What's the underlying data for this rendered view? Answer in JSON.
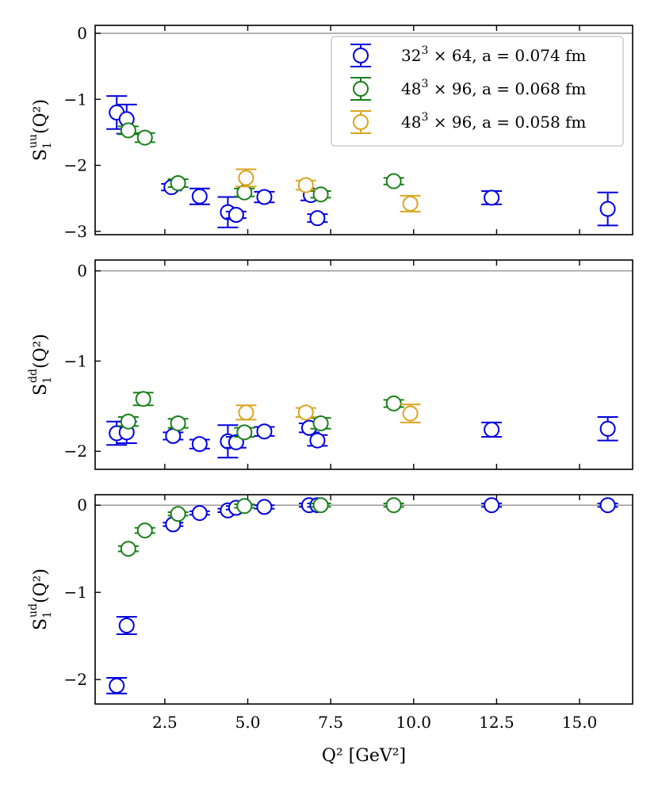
{
  "chart_data": {
    "type": "scatter",
    "xlabel": "Q² [GeV²]",
    "xlim": [
      0.4,
      16.6
    ],
    "xticks": [
      "2.5",
      "5.0",
      "7.5",
      "10.0",
      "12.5",
      "15.0"
    ],
    "xtick_values": [
      2.5,
      5.0,
      7.5,
      10.0,
      12.5,
      15.0
    ],
    "series_styles": [
      {
        "name": "32³ × 64, a = 0.074 fm",
        "color": "#0000dd"
      },
      {
        "name": "48³ × 96, a = 0.068 fm",
        "color": "#1a7f1a"
      },
      {
        "name": "48³ × 96, a = 0.058 fm",
        "color": "#daa520"
      }
    ],
    "legend": {
      "position": "top-right",
      "entries": [
        {
          "prefix": "32",
          "sup": "3",
          "text": " × 64, a = 0.074 fm",
          "color": "#0000dd"
        },
        {
          "prefix": "48",
          "sup": "3",
          "text": " × 96, a = 0.068 fm",
          "color": "#1a7f1a"
        },
        {
          "prefix": "48",
          "sup": "3",
          "text": " × 96, a = 0.058 fm",
          "color": "#daa520"
        }
      ]
    },
    "panels": [
      {
        "id": "uu",
        "ylabel": "S₁ᵘᵘ(Q²)",
        "ylabel_main": "S",
        "ylabel_sub": "1",
        "ylabel_sup": "uu",
        "ylabel_tail": "(Q²)",
        "ylim": [
          -3.05,
          0.12
        ],
        "yticks": [
          "0",
          "−1",
          "−2",
          "−3"
        ],
        "ytick_values": [
          0,
          -1,
          -2,
          -3
        ],
        "series": [
          {
            "name": "32³ × 64, a = 0.074 fm",
            "points": [
              {
                "x": 1.05,
                "y": -1.2,
                "err": 0.25
              },
              {
                "x": 1.35,
                "y": -1.3,
                "err": 0.22
              },
              {
                "x": 2.7,
                "y": -2.33,
                "err": 0.05
              },
              {
                "x": 3.55,
                "y": -2.47,
                "err": 0.12
              },
              {
                "x": 4.4,
                "y": -2.71,
                "err": 0.23
              },
              {
                "x": 4.65,
                "y": -2.75,
                "err": 0.05
              },
              {
                "x": 5.5,
                "y": -2.48,
                "err": 0.08
              },
              {
                "x": 6.9,
                "y": -2.45,
                "err": 0.08
              },
              {
                "x": 7.1,
                "y": -2.8,
                "err": 0.06
              },
              {
                "x": 12.35,
                "y": -2.49,
                "err": 0.1
              },
              {
                "x": 15.85,
                "y": -2.66,
                "err": 0.25
              }
            ]
          },
          {
            "name": "48³ × 96, a = 0.068 fm",
            "points": [
              {
                "x": 1.4,
                "y": -1.47,
                "err": 0.06
              },
              {
                "x": 1.9,
                "y": -1.58,
                "err": 0.07
              },
              {
                "x": 2.9,
                "y": -2.27,
                "err": 0.06
              },
              {
                "x": 4.9,
                "y": -2.41,
                "err": 0.06
              },
              {
                "x": 7.2,
                "y": -2.44,
                "err": 0.05
              },
              {
                "x": 9.4,
                "y": -2.24,
                "err": 0.05
              }
            ]
          },
          {
            "name": "48³ × 96, a = 0.058 fm",
            "points": [
              {
                "x": 4.95,
                "y": -2.19,
                "err": 0.13
              },
              {
                "x": 6.75,
                "y": -2.3,
                "err": 0.07
              },
              {
                "x": 9.9,
                "y": -2.58,
                "err": 0.12
              }
            ]
          }
        ]
      },
      {
        "id": "dd",
        "ylabel": "S₁ᵈᵈ(Q²)",
        "ylabel_main": "S",
        "ylabel_sub": "1",
        "ylabel_sup": "dd",
        "ylabel_tail": "(Q²)",
        "ylim": [
          -2.2,
          0.12
        ],
        "yticks": [
          "0",
          "−1",
          "−2"
        ],
        "ytick_values": [
          0,
          -1,
          -2
        ],
        "series": [
          {
            "name": "32³ × 64, a = 0.074 fm",
            "points": [
              {
                "x": 1.05,
                "y": -1.8,
                "err": 0.13
              },
              {
                "x": 1.35,
                "y": -1.79,
                "err": 0.12
              },
              {
                "x": 2.75,
                "y": -1.83,
                "err": 0.04
              },
              {
                "x": 3.55,
                "y": -1.92,
                "err": 0.05
              },
              {
                "x": 4.4,
                "y": -1.89,
                "err": 0.18
              },
              {
                "x": 4.65,
                "y": -1.9,
                "err": 0.06
              },
              {
                "x": 5.5,
                "y": -1.78,
                "err": 0.05
              },
              {
                "x": 6.85,
                "y": -1.74,
                "err": 0.05
              },
              {
                "x": 7.1,
                "y": -1.88,
                "err": 0.06
              },
              {
                "x": 12.35,
                "y": -1.76,
                "err": 0.08
              },
              {
                "x": 15.85,
                "y": -1.75,
                "err": 0.13
              }
            ]
          },
          {
            "name": "48³ × 96, a = 0.068 fm",
            "points": [
              {
                "x": 1.4,
                "y": -1.67,
                "err": 0.05
              },
              {
                "x": 1.85,
                "y": -1.42,
                "err": 0.07
              },
              {
                "x": 2.9,
                "y": -1.69,
                "err": 0.05
              },
              {
                "x": 4.9,
                "y": -1.79,
                "err": 0.05
              },
              {
                "x": 7.2,
                "y": -1.69,
                "err": 0.06
              },
              {
                "x": 9.4,
                "y": -1.47,
                "err": 0.04
              }
            ]
          },
          {
            "name": "48³ × 96, a = 0.058 fm",
            "points": [
              {
                "x": 4.95,
                "y": -1.57,
                "err": 0.08
              },
              {
                "x": 6.75,
                "y": -1.57,
                "err": 0.05
              },
              {
                "x": 9.9,
                "y": -1.58,
                "err": 0.1
              }
            ]
          }
        ]
      },
      {
        "id": "ud",
        "ylabel": "S₁ᵘᵈ(Q²)",
        "ylabel_main": "S",
        "ylabel_sub": "1",
        "ylabel_sup": "ud",
        "ylabel_tail": "(Q²)",
        "ylim": [
          -2.28,
          0.12
        ],
        "yticks": [
          "0",
          "−1",
          "−2"
        ],
        "ytick_values": [
          0,
          -1,
          -2
        ],
        "series": [
          {
            "name": "32³ × 64, a = 0.074 fm",
            "points": [
              {
                "x": 1.05,
                "y": -2.07,
                "err": 0.09
              },
              {
                "x": 1.35,
                "y": -1.38,
                "err": 0.1
              },
              {
                "x": 2.75,
                "y": -0.22,
                "err": 0.02
              },
              {
                "x": 3.55,
                "y": -0.09,
                "err": 0.02
              },
              {
                "x": 4.4,
                "y": -0.06,
                "err": 0.02
              },
              {
                "x": 4.65,
                "y": -0.03,
                "err": 0.02
              },
              {
                "x": 5.5,
                "y": -0.02,
                "err": 0.02
              },
              {
                "x": 6.85,
                "y": 0.0,
                "err": 0.02
              },
              {
                "x": 7.1,
                "y": 0.0,
                "err": 0.02
              },
              {
                "x": 12.35,
                "y": 0.0,
                "err": 0.02
              },
              {
                "x": 15.85,
                "y": 0.0,
                "err": 0.02
              }
            ]
          },
          {
            "name": "48³ × 96, a = 0.068 fm",
            "points": [
              {
                "x": 1.4,
                "y": -0.5,
                "err": 0.03
              },
              {
                "x": 1.9,
                "y": -0.29,
                "err": 0.03
              },
              {
                "x": 2.9,
                "y": -0.1,
                "err": 0.02
              },
              {
                "x": 4.9,
                "y": -0.01,
                "err": 0.02
              },
              {
                "x": 7.2,
                "y": 0.0,
                "err": 0.02
              },
              {
                "x": 9.4,
                "y": 0.0,
                "err": 0.02
              }
            ]
          },
          {
            "name": "48³ × 96, a = 0.058 fm",
            "points": []
          }
        ]
      }
    ]
  }
}
